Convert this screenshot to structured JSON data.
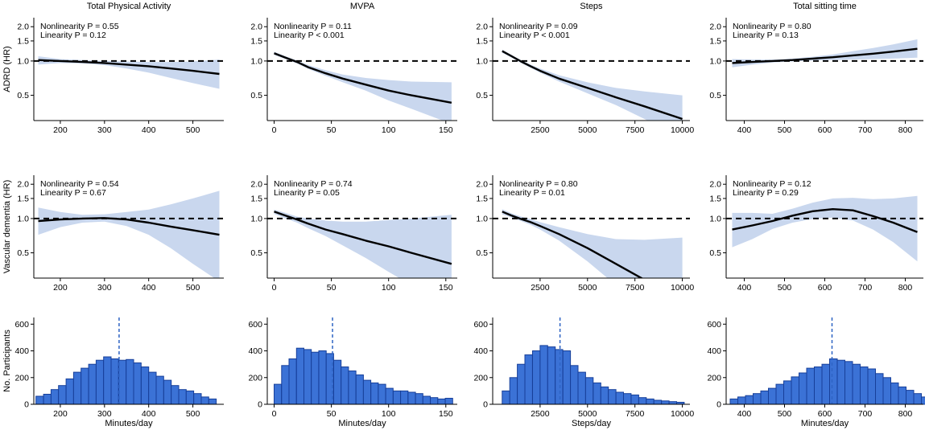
{
  "chart_data": {
    "type": "line",
    "row_ylabels": [
      "ADRD (HR)",
      "Vascular dementia (HR)",
      "No. Participants"
    ],
    "columns": [
      {
        "title": "Total Physical Activity",
        "xlabel": "Minutes/day",
        "xlim": [
          140,
          570
        ],
        "xticks": [
          200,
          300,
          400,
          500
        ],
        "curves": [
          {
            "nonlinearity": "Nonlinearity P = 0.55",
            "linearity": "Linearity P = 0.12",
            "x": [
              150,
              200,
              250,
              300,
              350,
              400,
              450,
              500,
              560
            ],
            "hr": [
              1.02,
              1.0,
              0.98,
              0.96,
              0.93,
              0.9,
              0.86,
              0.82,
              0.77
            ],
            "lower": [
              0.93,
              0.96,
              0.95,
              0.92,
              0.86,
              0.79,
              0.71,
              0.64,
              0.57
            ],
            "upper": [
              1.1,
              1.04,
              1.02,
              1.0,
              0.99,
              0.98,
              0.98,
              0.99,
              1.03
            ]
          },
          {
            "nonlinearity": "Nonlinearity P = 0.54",
            "linearity": "Linearity P = 0.67",
            "x": [
              150,
              200,
              250,
              300,
              350,
              400,
              450,
              500,
              560
            ],
            "hr": [
              0.95,
              0.98,
              1.0,
              1.01,
              0.98,
              0.92,
              0.85,
              0.79,
              0.72
            ],
            "lower": [
              0.72,
              0.84,
              0.92,
              0.94,
              0.86,
              0.72,
              0.55,
              0.4,
              0.28
            ],
            "upper": [
              1.25,
              1.14,
              1.08,
              1.09,
              1.14,
              1.2,
              1.33,
              1.5,
              1.75
            ]
          }
        ],
        "hist": {
          "bin_start": 145,
          "bin_width": 17,
          "counts": [
            60,
            75,
            110,
            140,
            190,
            240,
            270,
            300,
            330,
            355,
            340,
            330,
            335,
            310,
            280,
            240,
            210,
            180,
            140,
            110,
            100,
            80,
            55,
            40
          ],
          "median": 333,
          "ylim": [
            0,
            650
          ],
          "yticks": [
            0,
            200,
            400,
            600
          ]
        }
      },
      {
        "title": "MVPA",
        "xlabel": "Minutes/day",
        "xlim": [
          -6,
          160
        ],
        "xticks": [
          0,
          50,
          100,
          150
        ],
        "curves": [
          {
            "nonlinearity": "Nonlinearity P = 0.11",
            "linearity": "Linearity P < 0.001",
            "x": [
              0,
              10,
              20,
              30,
              45,
              60,
              80,
              100,
              120,
              155
            ],
            "hr": [
              1.17,
              1.07,
              0.98,
              0.88,
              0.78,
              0.7,
              0.62,
              0.55,
              0.5,
              0.43
            ],
            "lower": [
              1.13,
              1.04,
              0.95,
              0.85,
              0.74,
              0.65,
              0.55,
              0.45,
              0.38,
              0.28
            ],
            "upper": [
              1.21,
              1.1,
              1.01,
              0.92,
              0.83,
              0.76,
              0.71,
              0.68,
              0.66,
              0.65
            ]
          },
          {
            "nonlinearity": "Nonlinearity P = 0.74",
            "linearity": "Linearity P = 0.05",
            "x": [
              0,
              10,
              20,
              30,
              45,
              60,
              80,
              100,
              120,
              155
            ],
            "hr": [
              1.15,
              1.06,
              0.98,
              0.9,
              0.8,
              0.73,
              0.64,
              0.57,
              0.5,
              0.4
            ],
            "lower": [
              1.1,
              1.0,
              0.92,
              0.82,
              0.7,
              0.58,
              0.45,
              0.34,
              0.26,
              0.16
            ],
            "upper": [
              1.2,
              1.12,
              1.04,
              1.0,
              0.96,
              0.94,
              0.94,
              0.97,
              1.0,
              1.08
            ]
          }
        ],
        "hist": {
          "bin_start": 0,
          "bin_width": 6.5,
          "counts": [
            150,
            290,
            340,
            420,
            410,
            390,
            400,
            380,
            330,
            280,
            250,
            220,
            180,
            160,
            150,
            120,
            100,
            100,
            90,
            80,
            60,
            50,
            40,
            45
          ],
          "median": 51,
          "ylim": [
            0,
            650
          ],
          "yticks": [
            0,
            200,
            400,
            600
          ]
        }
      },
      {
        "title": "Steps",
        "xlabel": "Steps/day",
        "xlim": [
          0,
          10400
        ],
        "xticks": [
          2500,
          5000,
          7500,
          10000
        ],
        "curves": [
          {
            "nonlinearity": "Nonlinearity P = 0.09",
            "linearity": "Linearity P < 0.001",
            "x": [
              500,
              1000,
              1500,
              2000,
              2500,
              3500,
              5000,
              6500,
              8000,
              10000
            ],
            "hr": [
              1.22,
              1.1,
              0.99,
              0.9,
              0.82,
              0.7,
              0.58,
              0.48,
              0.4,
              0.31
            ],
            "lower": [
              1.18,
              1.07,
              0.96,
              0.87,
              0.79,
              0.66,
              0.52,
              0.41,
              0.31,
              0.21
            ],
            "upper": [
              1.26,
              1.13,
              1.02,
              0.93,
              0.86,
              0.75,
              0.65,
              0.58,
              0.54,
              0.5
            ]
          },
          {
            "nonlinearity": "Nonlinearity P = 0.80",
            "linearity": "Linearity P = 0.01",
            "x": [
              500,
              1000,
              1500,
              2000,
              2500,
              3500,
              5000,
              6500,
              8000,
              10000
            ],
            "hr": [
              1.15,
              1.06,
              0.99,
              0.93,
              0.86,
              0.73,
              0.55,
              0.4,
              0.29,
              0.18
            ],
            "lower": [
              1.09,
              1.02,
              0.95,
              0.88,
              0.8,
              0.64,
              0.42,
              0.26,
              0.16,
              0.09
            ],
            "upper": [
              1.21,
              1.11,
              1.04,
              0.99,
              0.93,
              0.84,
              0.73,
              0.66,
              0.65,
              0.68
            ]
          }
        ],
        "hist": {
          "bin_start": 500,
          "bin_width": 400,
          "counts": [
            100,
            200,
            300,
            370,
            400,
            440,
            430,
            410,
            400,
            290,
            240,
            200,
            160,
            130,
            110,
            90,
            80,
            70,
            50,
            40,
            30,
            25,
            20,
            15
          ],
          "median": 3550,
          "ylim": [
            0,
            650
          ],
          "yticks": [
            0,
            200,
            400,
            600
          ]
        }
      },
      {
        "title": "Total sitting time",
        "xlabel": "Minutes/day",
        "xlim": [
          355,
          845
        ],
        "xticks": [
          400,
          500,
          600,
          700,
          800
        ],
        "curves": [
          {
            "nonlinearity": "Nonlinearity P = 0.80",
            "linearity": "Linearity P = 0.13",
            "x": [
              370,
              420,
              470,
              520,
              570,
              620,
              670,
              720,
              770,
              830
            ],
            "hr": [
              0.96,
              0.98,
              1.0,
              1.02,
              1.05,
              1.08,
              1.12,
              1.16,
              1.21,
              1.28
            ],
            "lower": [
              0.88,
              0.93,
              0.97,
              0.99,
              1.01,
              1.02,
              1.03,
              1.04,
              1.05,
              1.07
            ],
            "upper": [
              1.04,
              1.03,
              1.03,
              1.05,
              1.09,
              1.14,
              1.22,
              1.3,
              1.4,
              1.55
            ]
          },
          {
            "nonlinearity": "Nonlinearity P = 0.12",
            "linearity": "Linearity P = 0.29",
            "x": [
              370,
              420,
              470,
              520,
              570,
              620,
              670,
              720,
              770,
              830
            ],
            "hr": [
              0.8,
              0.87,
              0.95,
              1.06,
              1.16,
              1.21,
              1.18,
              1.05,
              0.92,
              0.76
            ],
            "lower": [
              0.56,
              0.66,
              0.81,
              0.92,
              0.99,
              1.02,
              0.96,
              0.8,
              0.62,
              0.42
            ],
            "upper": [
              1.12,
              1.12,
              1.1,
              1.22,
              1.38,
              1.5,
              1.52,
              1.48,
              1.5,
              1.58
            ]
          }
        ],
        "hist": {
          "bin_start": 365,
          "bin_width": 19,
          "counts": [
            40,
            55,
            65,
            80,
            100,
            120,
            150,
            175,
            205,
            235,
            270,
            280,
            300,
            340,
            330,
            320,
            300,
            280,
            265,
            230,
            200,
            160,
            130,
            105,
            80,
            55
          ],
          "median": 618,
          "ylim": [
            0,
            650
          ],
          "yticks": [
            0,
            200,
            400,
            600
          ]
        }
      }
    ],
    "hr_axis": {
      "scale": "log",
      "ylim": [
        0.3,
        2.4
      ],
      "ytick_labels": [
        "0.5",
        "1.0",
        "1.5",
        "2.0"
      ],
      "yticks": [
        0.5,
        1.0,
        1.5,
        2.0
      ],
      "reference_line": 1.0
    },
    "colors": {
      "band": "#c9d7ee",
      "line": "#000000",
      "bar_fill": "#3b72d6",
      "bar_edge": "#173f99",
      "median_line": "#2e64c4"
    }
  }
}
